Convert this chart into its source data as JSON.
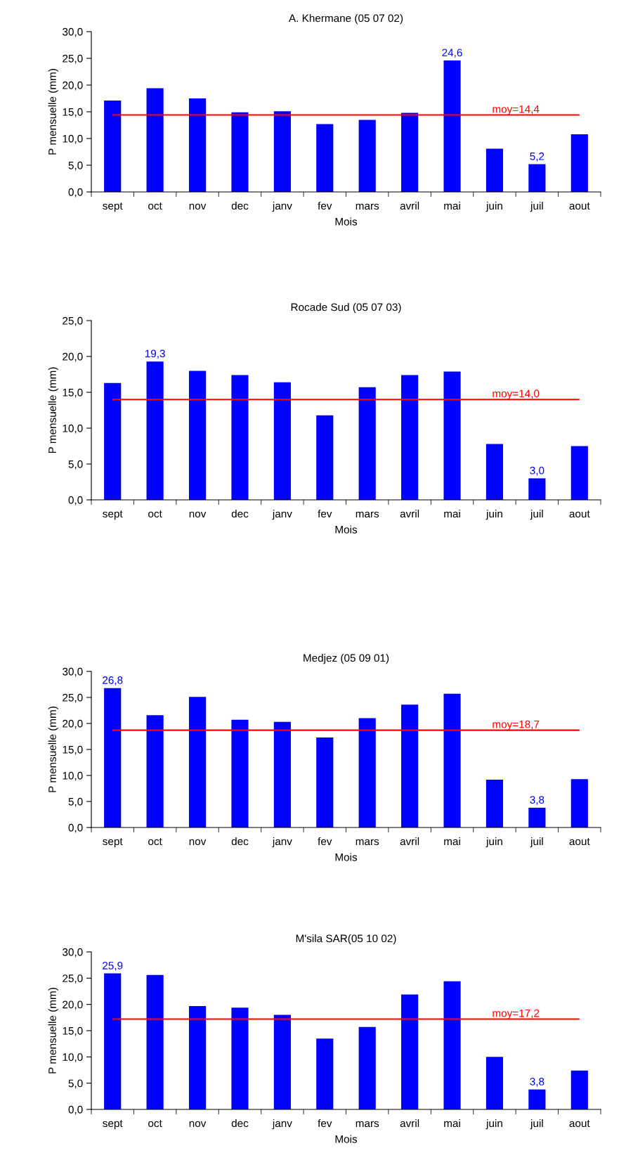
{
  "chart_data": [
    {
      "type": "bar",
      "title": "A. Khermane (05 07 02)",
      "xlabel": "Mois",
      "ylabel": "P mensuelle (mm)",
      "categories": [
        "sept",
        "oct",
        "nov",
        "dec",
        "janv",
        "fev",
        "mars",
        "avril",
        "mai",
        "juin",
        "juil",
        "aout"
      ],
      "color": "#0000ff",
      "values": [
        17.1,
        19.4,
        17.5,
        14.9,
        15.1,
        12.7,
        13.5,
        14.8,
        24.6,
        8.1,
        5.2,
        10.8
      ],
      "value_labels": [
        null,
        null,
        null,
        null,
        null,
        null,
        null,
        null,
        "24,6",
        null,
        "5,2",
        null
      ],
      "ylim": [
        0,
        30
      ],
      "yticks": [
        {
          "value": 0,
          "label": "0,0"
        },
        {
          "value": 5,
          "label": "5,0"
        },
        {
          "value": 10,
          "label": "10,0"
        },
        {
          "value": 15,
          "label": "15,0"
        },
        {
          "value": 20,
          "label": "20,0"
        },
        {
          "value": 25,
          "label": "25,0"
        },
        {
          "value": 30,
          "label": "30,0"
        }
      ],
      "ref_lines": [
        {
          "axis": "y",
          "value": 14.4,
          "label": "moy=14,4",
          "color": "#ff0000"
        }
      ],
      "grid": false,
      "legend": false
    },
    {
      "type": "bar",
      "title": "Rocade Sud (05 07 03)",
      "xlabel": "Mois",
      "ylabel": "P mensuelle (mm)",
      "categories": [
        "sept",
        "oct",
        "nov",
        "dec",
        "janv",
        "fev",
        "mars",
        "avril",
        "mai",
        "juin",
        "juil",
        "aout"
      ],
      "color": "#0000ff",
      "values": [
        16.3,
        19.3,
        18.0,
        17.4,
        16.4,
        11.8,
        15.7,
        17.4,
        17.9,
        7.8,
        3.0,
        7.5
      ],
      "value_labels": [
        null,
        "19,3",
        null,
        null,
        null,
        null,
        null,
        null,
        null,
        null,
        "3,0",
        null
      ],
      "ylim": [
        0,
        25
      ],
      "yticks": [
        {
          "value": 0,
          "label": "0,0"
        },
        {
          "value": 5,
          "label": "5,0"
        },
        {
          "value": 10,
          "label": "10,0"
        },
        {
          "value": 15,
          "label": "15,0"
        },
        {
          "value": 20,
          "label": "20,0"
        },
        {
          "value": 25,
          "label": "25,0"
        }
      ],
      "ref_lines": [
        {
          "axis": "y",
          "value": 14.0,
          "label": "moy=14,0",
          "color": "#ff0000"
        }
      ],
      "grid": false,
      "legend": false
    },
    {
      "type": "bar",
      "title": "Medjez (05 09 01)",
      "xlabel": "Mois",
      "ylabel": "P mensuelle (mm)",
      "categories": [
        "sept",
        "oct",
        "nov",
        "dec",
        "janv",
        "fev",
        "mars",
        "avril",
        "mai",
        "juin",
        "juil",
        "aout"
      ],
      "color": "#0000ff",
      "values": [
        26.8,
        21.6,
        25.1,
        20.7,
        20.3,
        17.3,
        21.0,
        23.6,
        25.7,
        9.2,
        3.8,
        9.3
      ],
      "value_labels": [
        "26,8",
        null,
        null,
        null,
        null,
        null,
        null,
        null,
        null,
        null,
        "3,8",
        null
      ],
      "ylim": [
        0,
        30
      ],
      "yticks": [
        {
          "value": 0,
          "label": "0,0"
        },
        {
          "value": 5,
          "label": "5,0"
        },
        {
          "value": 10,
          "label": "10,0"
        },
        {
          "value": 15,
          "label": "15,0"
        },
        {
          "value": 20,
          "label": "20,0"
        },
        {
          "value": 25,
          "label": "25,0"
        },
        {
          "value": 30,
          "label": "30,0"
        }
      ],
      "ref_lines": [
        {
          "axis": "y",
          "value": 18.7,
          "label": "moy=18,7",
          "color": "#ff0000"
        }
      ],
      "grid": false,
      "legend": false
    },
    {
      "type": "bar",
      "title": "M'sila SAR(05 10 02)",
      "xlabel": "Mois",
      "ylabel": "P mensuelle (mm)",
      "categories": [
        "sept",
        "oct",
        "nov",
        "dec",
        "janv",
        "fev",
        "mars",
        "avril",
        "mai",
        "juin",
        "juil",
        "aout"
      ],
      "color": "#0000ff",
      "values": [
        25.9,
        25.6,
        19.7,
        19.4,
        18.0,
        13.5,
        15.7,
        21.9,
        24.4,
        10.0,
        3.8,
        7.4
      ],
      "value_labels": [
        "25,9",
        null,
        null,
        null,
        null,
        null,
        null,
        null,
        null,
        null,
        "3,8",
        null
      ],
      "ylim": [
        0,
        30
      ],
      "yticks": [
        {
          "value": 0,
          "label": "0,0"
        },
        {
          "value": 5,
          "label": "5,0"
        },
        {
          "value": 10,
          "label": "10,0"
        },
        {
          "value": 15,
          "label": "15,0"
        },
        {
          "value": 20,
          "label": "20,0"
        },
        {
          "value": 25,
          "label": "25,0"
        },
        {
          "value": 30,
          "label": "30,0"
        }
      ],
      "ref_lines": [
        {
          "axis": "y",
          "value": 17.2,
          "label": "moy=17,2",
          "color": "#ff0000"
        }
      ],
      "grid": false,
      "legend": false
    }
  ]
}
